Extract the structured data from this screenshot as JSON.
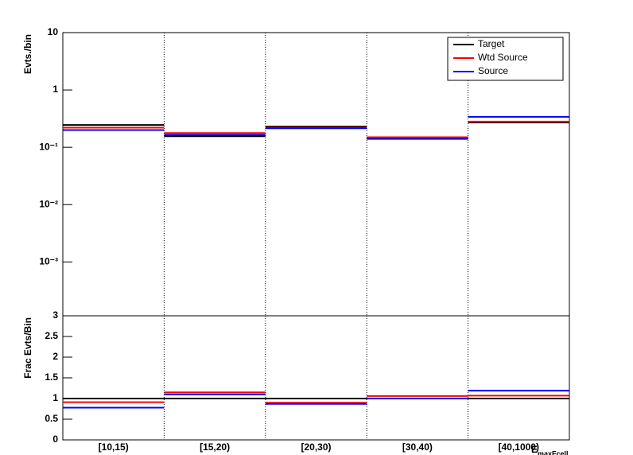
{
  "chart_data": [
    {
      "type": "hist",
      "ylabel": "Evts./bin",
      "log": true,
      "ylim": [
        0.000115,
        10
      ],
      "yticks": [
        10,
        1,
        {
          "value": 0.1,
          "label": "10⁻¹"
        },
        {
          "value": 0.01,
          "label": "10⁻²"
        },
        {
          "value": 0.001,
          "label": "10⁻³"
        }
      ],
      "grid_x": true,
      "legend": "top-right",
      "series": [
        {
          "name": "Target",
          "color": "#000000",
          "values": [
            0.245,
            0.156,
            0.23,
            0.147,
            0.27
          ]
        },
        {
          "name": "Wtd Source",
          "color": "#ff0000",
          "values": [
            0.22,
            0.177,
            0.22,
            0.15,
            0.28
          ]
        },
        {
          "name": "Source",
          "color": "#0000ff",
          "values": [
            0.2,
            0.165,
            0.215,
            0.14,
            0.34
          ]
        }
      ]
    },
    {
      "type": "hist",
      "ylabel": "Frac Evts/Bin",
      "xlabel": "E",
      "xlabel_sub": "maxFcell",
      "categories": [
        "[10,15)",
        "[15,20)",
        "[20,30)",
        "[30,40)",
        "[40,1000)"
      ],
      "ylim": [
        0,
        3
      ],
      "yticks": [
        0,
        0.5,
        1,
        1.5,
        2,
        2.5,
        3
      ],
      "grid_x": true,
      "series": [
        {
          "color": "#000000",
          "values": [
            1,
            1,
            1,
            1,
            1
          ]
        },
        {
          "color": "#ff0000",
          "values": [
            0.91,
            1.15,
            0.9,
            1.06,
            1.07
          ]
        },
        {
          "color": "#0000ff",
          "values": [
            0.78,
            1.1,
            0.87,
            1.0,
            1.19
          ]
        }
      ]
    }
  ]
}
